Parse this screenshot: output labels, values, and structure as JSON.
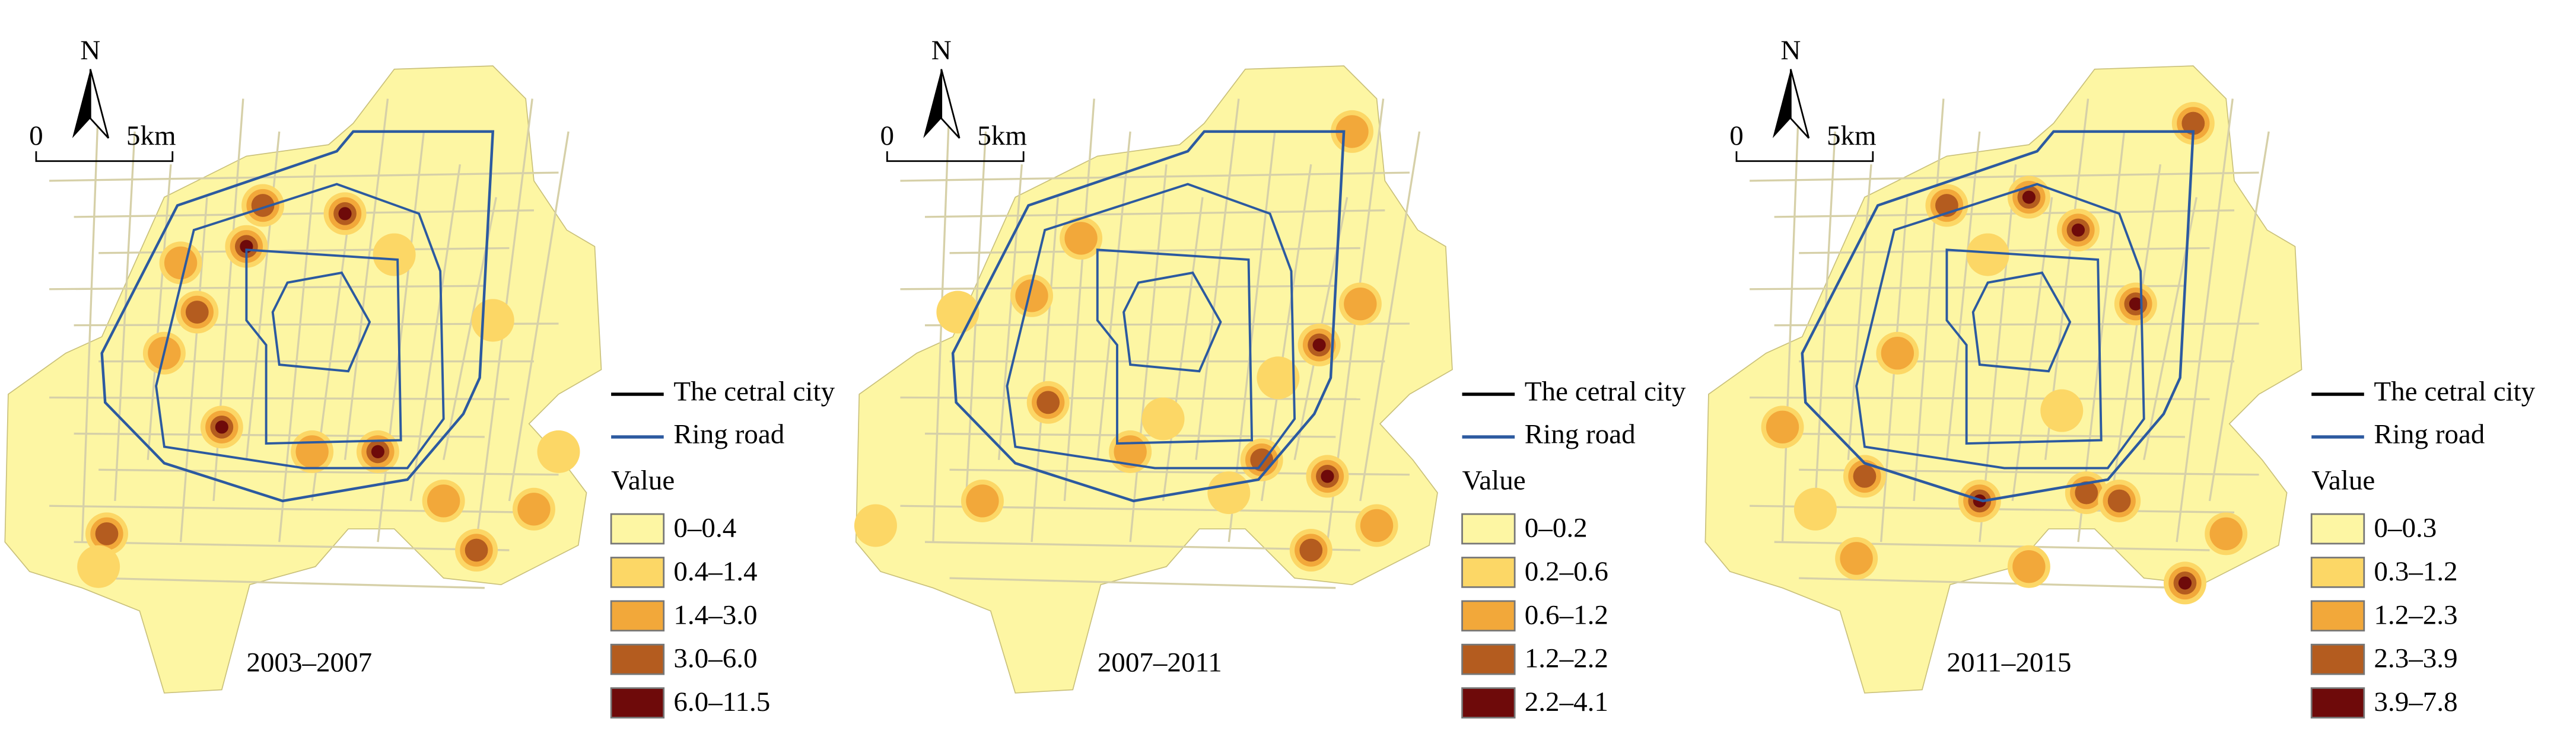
{
  "panels": [
    {
      "period": "2003–2007",
      "north": "N",
      "scale": {
        "start": "0",
        "end": "5km"
      },
      "legend": {
        "lines": [
          "The cetral city",
          "Ring road"
        ],
        "title": "Value",
        "classes": [
          "0–0.4",
          "0.4–1.4",
          "1.4–3.0",
          "3.0–6.0",
          "6.0–11.5"
        ]
      }
    },
    {
      "period": "2007–2011",
      "north": "N",
      "scale": {
        "start": "0",
        "end": "5km"
      },
      "legend": {
        "lines": [
          "The cetral city",
          "Ring road"
        ],
        "title": "Value",
        "classes": [
          "0–0.2",
          "0.2–0.6",
          "0.6–1.2",
          "1.2–2.2",
          "2.2–4.1"
        ]
      }
    },
    {
      "period": "2011–2015",
      "north": "N",
      "scale": {
        "start": "0",
        "end": "5km"
      },
      "legend": {
        "lines": [
          "The cetral city",
          "Ring road"
        ],
        "title": "Value",
        "classes": [
          "0–0.3",
          "0.3–1.2",
          "1.2–2.3",
          "2.3–3.9",
          "3.9–7.8"
        ]
      }
    }
  ]
}
